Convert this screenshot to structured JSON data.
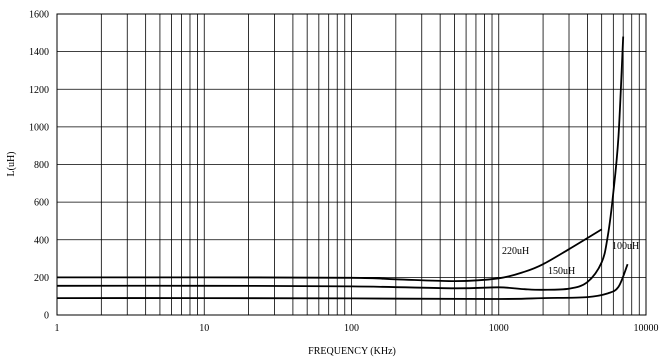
{
  "chart_data": {
    "type": "line",
    "title": "",
    "xlabel": "FREQUENCY (KHz)",
    "ylabel": "L(uH)",
    "xscale": "log",
    "xlim": [
      1,
      10000
    ],
    "ylim": [
      0,
      1600
    ],
    "grid": true,
    "x_tick_labels": [
      "1",
      "10",
      "100",
      "1000",
      "10000"
    ],
    "y_tick_labels": [
      "0",
      "200",
      "400",
      "600",
      "800",
      "1000",
      "1200",
      "1400",
      "1600"
    ],
    "series": [
      {
        "name": "220uH",
        "points": [
          [
            1,
            200
          ],
          [
            10,
            200
          ],
          [
            100,
            198
          ],
          [
            200,
            190
          ],
          [
            500,
            180
          ],
          [
            1000,
            195
          ],
          [
            1500,
            230
          ],
          [
            2000,
            270
          ],
          [
            3000,
            350
          ],
          [
            5000,
            455
          ]
        ]
      },
      {
        "name": "150uH",
        "points": [
          [
            1,
            155
          ],
          [
            10,
            155
          ],
          [
            100,
            152
          ],
          [
            500,
            142
          ],
          [
            1000,
            147
          ],
          [
            1500,
            137
          ],
          [
            2000,
            134
          ],
          [
            3000,
            140
          ],
          [
            4000,
            175
          ],
          [
            5000,
            280
          ],
          [
            5500,
            420
          ],
          [
            6000,
            650
          ],
          [
            6500,
            950
          ],
          [
            7000,
            1480
          ]
        ]
      },
      {
        "name": "100uH",
        "points": [
          [
            1,
            90
          ],
          [
            10,
            90
          ],
          [
            100,
            88
          ],
          [
            1000,
            85
          ],
          [
            2000,
            90
          ],
          [
            4000,
            95
          ],
          [
            5500,
            115
          ],
          [
            6500,
            150
          ],
          [
            7500,
            270
          ]
        ]
      }
    ]
  }
}
